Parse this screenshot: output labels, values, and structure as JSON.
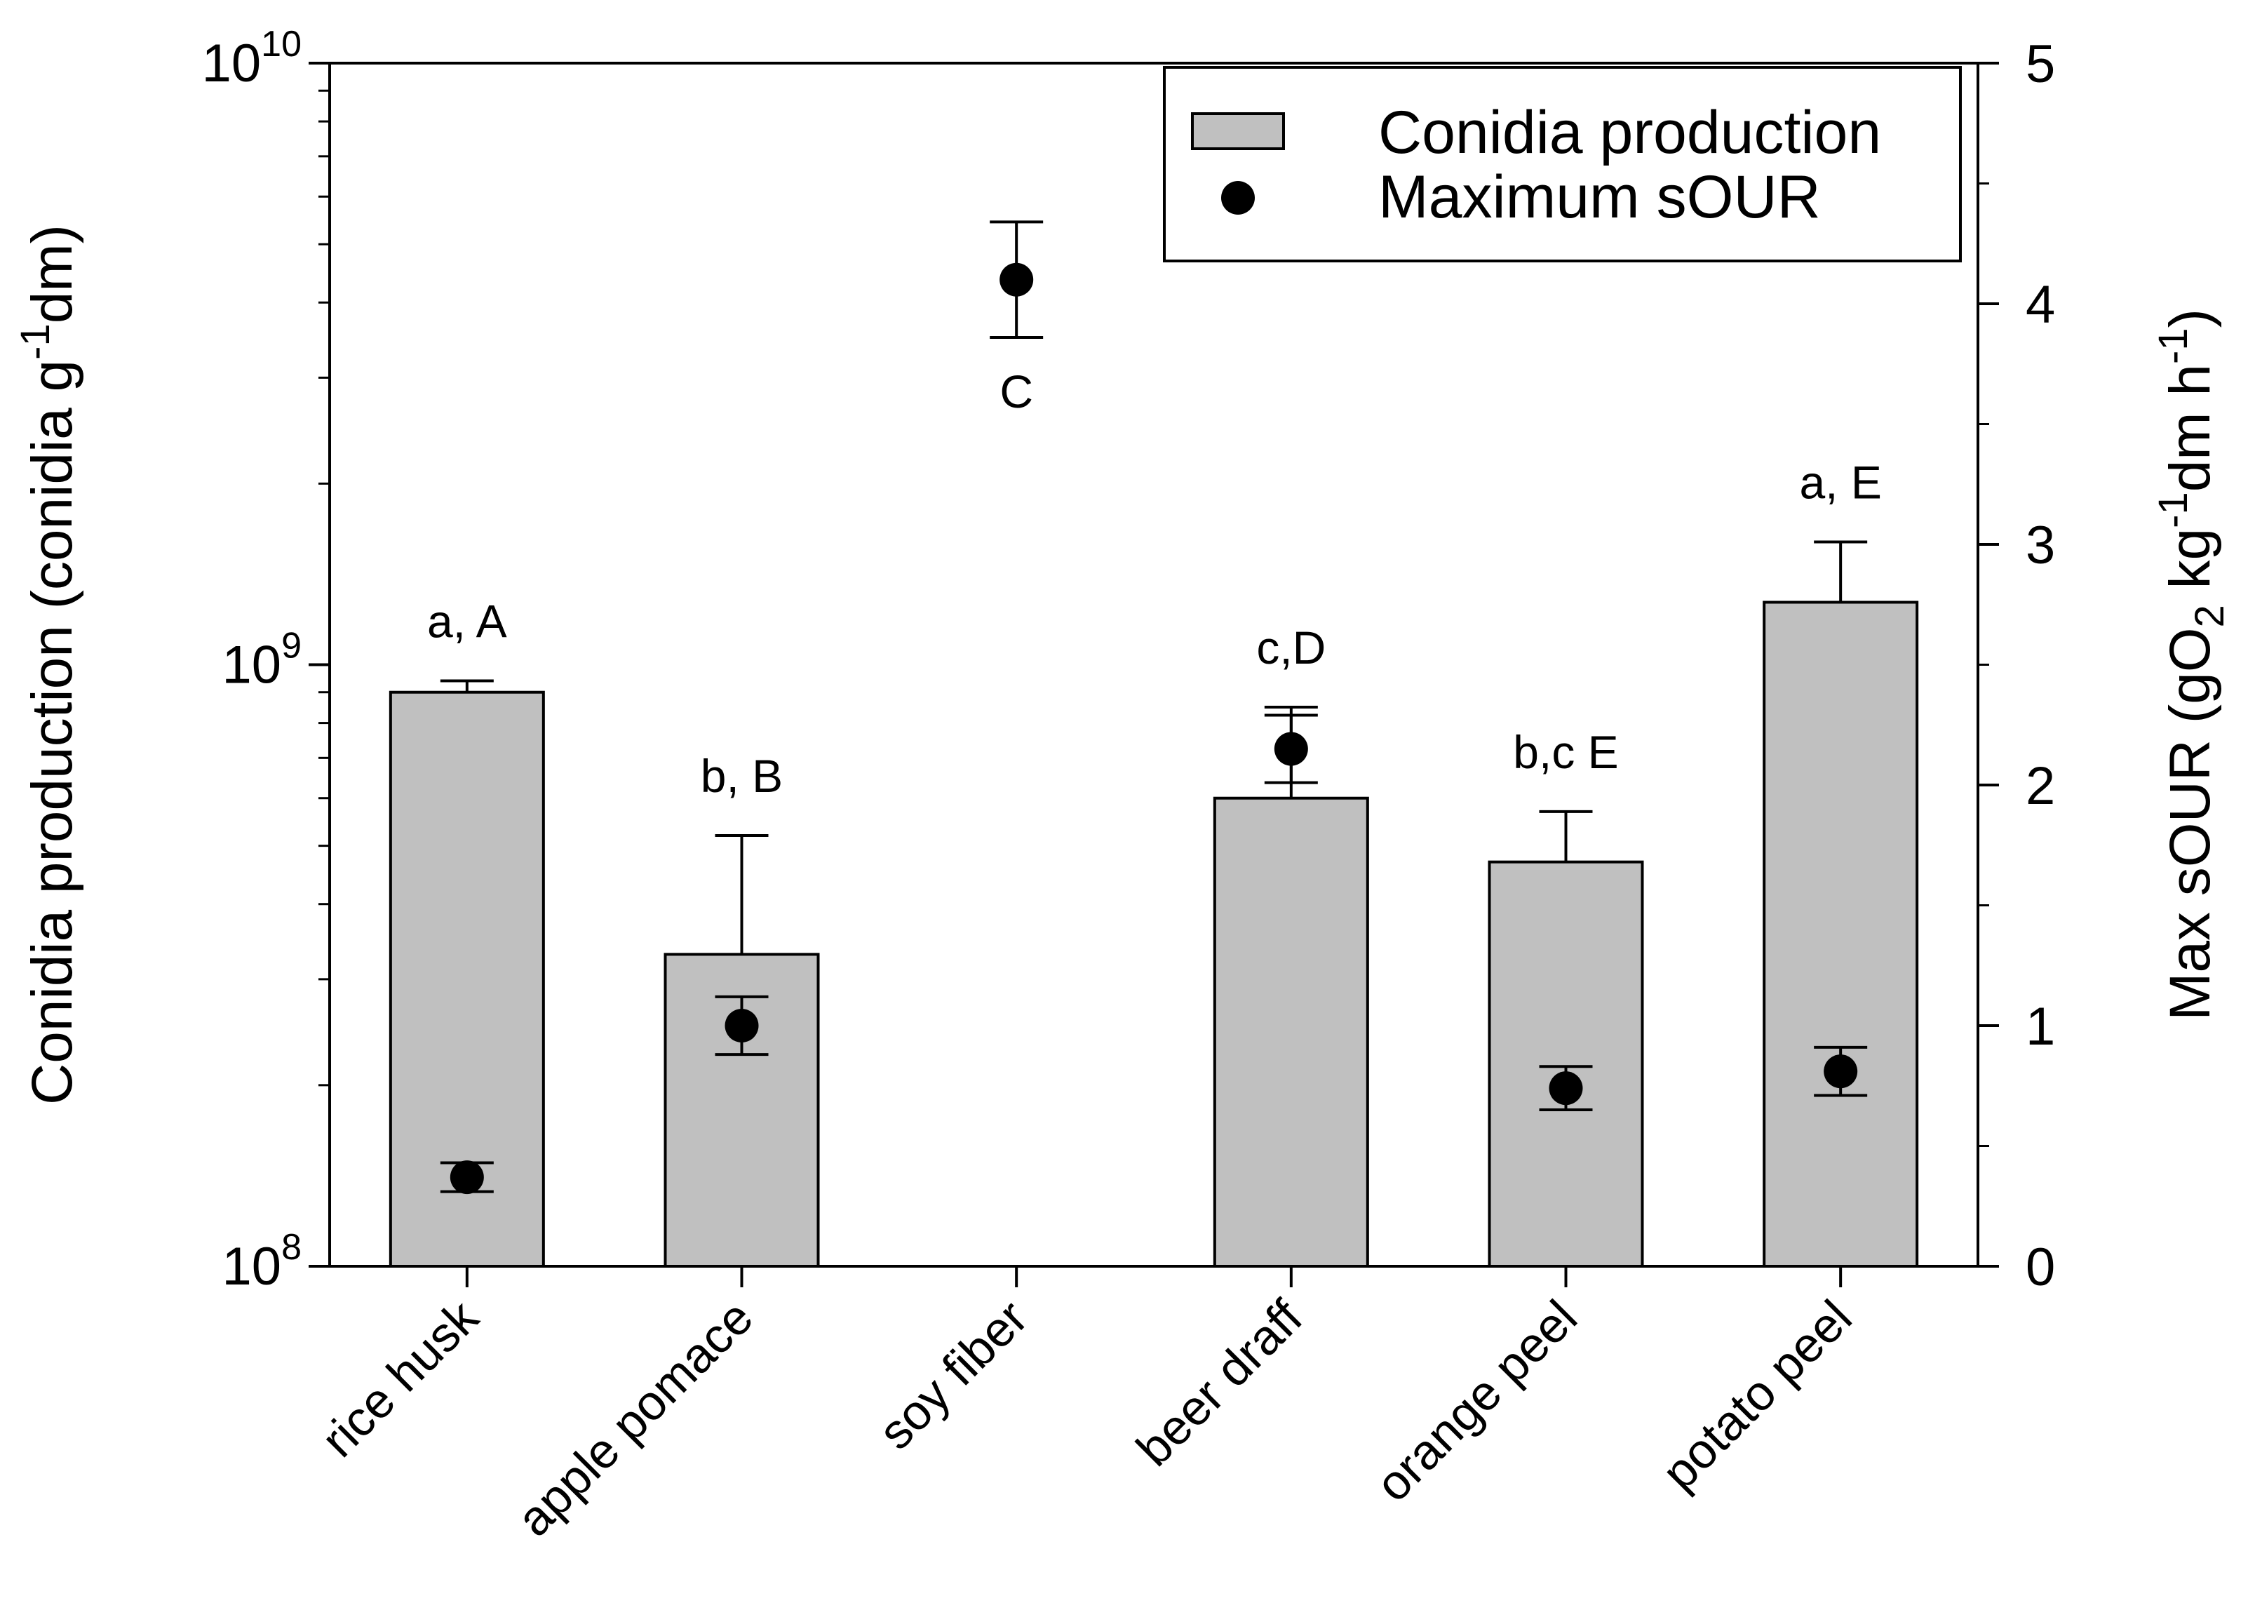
{
  "chart_data": {
    "type": "bar",
    "title": "",
    "categories": [
      "rice husk",
      "apple pomace",
      "soy fiber",
      "beer draff",
      "orange peel",
      "potato peel"
    ],
    "series": [
      {
        "name": "Conidia production",
        "kind": "bar",
        "axis": "left",
        "values": [
          900000000,
          330000000,
          null,
          600000000,
          470000000,
          1270000000
        ],
        "error_upper": [
          940000000,
          520000000,
          null,
          850000000,
          570000000,
          1600000000
        ]
      },
      {
        "name": "Maximum sOUR",
        "kind": "scatter",
        "axis": "right",
        "values": [
          0.37,
          1.0,
          4.1,
          2.15,
          0.74,
          0.81
        ],
        "error": [
          0.06,
          0.12,
          0.24,
          0.14,
          0.09,
          0.1
        ]
      }
    ],
    "annotations": [
      "a, A",
      "b, B",
      "C",
      "c,D",
      "b,c E",
      "a, E"
    ],
    "left_axis": {
      "scale": "log",
      "ylim": [
        100000000,
        10000000000
      ],
      "tick_values": [
        100000000,
        1000000000,
        10000000000
      ],
      "tick_bases": [
        "10",
        "10",
        "10"
      ],
      "tick_exponents": [
        "8",
        "9",
        "10"
      ],
      "label_parts": [
        "Conidia production (conidia g",
        "-1",
        "dm)"
      ]
    },
    "right_axis": {
      "scale": "linear",
      "ylim": [
        0,
        5
      ],
      "tick_values": [
        0,
        1,
        2,
        3,
        4,
        5
      ],
      "tick_labels": [
        "0",
        "1",
        "2",
        "3",
        "4",
        "5"
      ],
      "label_parts": [
        "Max sOUR (gO",
        "2",
        " kg",
        "-1",
        "dm h",
        "-1",
        ")"
      ]
    },
    "legend": {
      "position": "top-right",
      "entries": [
        "Conidia production",
        "Maximum sOUR"
      ]
    }
  }
}
